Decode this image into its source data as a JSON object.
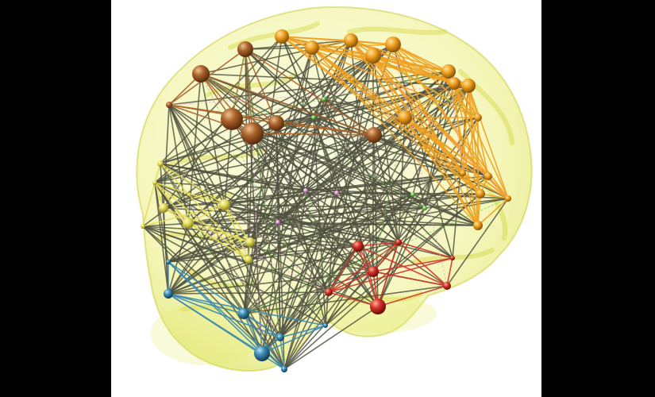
{
  "scene": {
    "background": "#ffffff",
    "letterbox_color": "#000000",
    "brain_color": "#e8ec6a",
    "edge_default_color": "#4f513f",
    "modules": [
      {
        "id": "orange",
        "color": "#f0a020"
      },
      {
        "id": "brown",
        "color": "#a8622a"
      },
      {
        "id": "yellow",
        "color": "#e4dc58"
      },
      {
        "id": "blue",
        "color": "#3a88b0"
      },
      {
        "id": "red",
        "color": "#d23228"
      },
      {
        "id": "green",
        "color": "#7ccc5a"
      },
      {
        "id": "pink",
        "color": "#e8a0d8"
      }
    ]
  }
}
